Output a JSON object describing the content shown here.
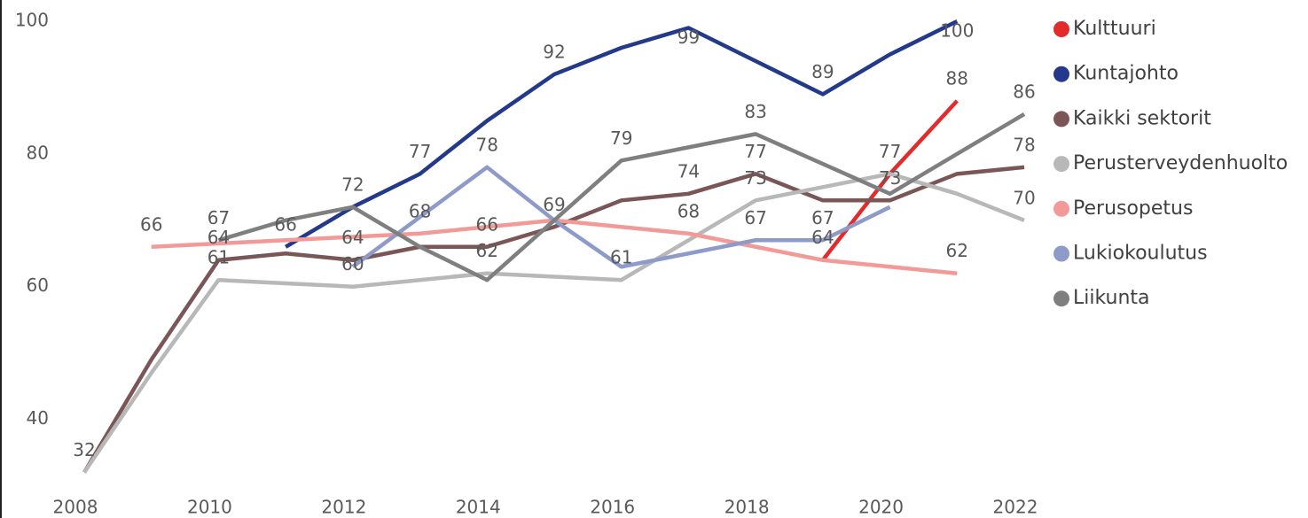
{
  "chart_data": {
    "type": "line",
    "x": [
      2008,
      2009,
      2010,
      2011,
      2012,
      2013,
      2014,
      2015,
      2016,
      2017,
      2018,
      2019,
      2020,
      2021,
      2022
    ],
    "xlim": [
      2008,
      2022
    ],
    "xticks": [
      2008,
      2010,
      2012,
      2014,
      2016,
      2018,
      2020,
      2022
    ],
    "ylim": [
      31,
      100
    ],
    "yticks": [
      40,
      60,
      80,
      100
    ],
    "legend": "right",
    "series": [
      {
        "name": "Kulttuuri",
        "color": "#e32b2b",
        "values": [
          null,
          null,
          null,
          null,
          null,
          null,
          null,
          null,
          null,
          null,
          null,
          64,
          77,
          88,
          null
        ],
        "value_labels": [
          null,
          null,
          null,
          null,
          null,
          null,
          null,
          null,
          null,
          null,
          null,
          "64",
          "77",
          "88",
          null
        ]
      },
      {
        "name": "Kuntajohto",
        "color": "#233a8a",
        "values": [
          null,
          null,
          null,
          66,
          72,
          77,
          85,
          92,
          96,
          99,
          94,
          89,
          95,
          100,
          null
        ],
        "value_labels": [
          null,
          null,
          null,
          "66",
          null,
          "77",
          null,
          "92",
          null,
          "99",
          null,
          "89",
          null,
          "100",
          null
        ]
      },
      {
        "name": "Kaikki sektorit",
        "color": "#7a5656",
        "values": [
          32,
          49,
          64,
          65,
          64,
          66,
          66,
          69,
          73,
          74,
          77,
          73,
          73,
          77,
          78
        ],
        "value_labels": [
          "32",
          null,
          "64",
          null,
          "64",
          null,
          "66",
          "69",
          null,
          "74",
          "77",
          null,
          "73",
          null,
          "78"
        ]
      },
      {
        "name": "Perusterveydenhuolto",
        "color": "#b8b8b8",
        "values": [
          32,
          47,
          61,
          60.5,
          60,
          61,
          62,
          61.5,
          61,
          67,
          73,
          75,
          77,
          74,
          70
        ],
        "value_labels": [
          null,
          null,
          "61",
          null,
          "60",
          null,
          "62",
          null,
          "61",
          null,
          "73",
          null,
          null,
          null,
          "70"
        ]
      },
      {
        "name": "Perusopetus",
        "color": "#f29a98",
        "values": [
          null,
          66,
          66.5,
          67,
          67.5,
          68,
          69,
          70,
          69,
          68,
          66,
          64,
          63,
          62,
          null
        ],
        "value_labels": [
          null,
          "66",
          null,
          null,
          null,
          "68",
          null,
          null,
          null,
          "68",
          null,
          null,
          null,
          "62",
          null
        ]
      },
      {
        "name": "Lukiokoulutus",
        "color": "#8e9bc9",
        "values": [
          null,
          null,
          null,
          null,
          63,
          70.5,
          78,
          70,
          63,
          65,
          67,
          67,
          72,
          null,
          null
        ],
        "value_labels": [
          null,
          null,
          null,
          null,
          null,
          null,
          "78",
          null,
          null,
          null,
          "67",
          "67",
          null,
          null,
          null
        ]
      },
      {
        "name": "Liikunta",
        "color": "#7f7f7f",
        "values": [
          null,
          null,
          67,
          70,
          72,
          66,
          61,
          70,
          79,
          81,
          83,
          78.5,
          74,
          80,
          86
        ],
        "value_labels": [
          null,
          null,
          "67",
          null,
          "72",
          null,
          null,
          null,
          "79",
          null,
          "83",
          null,
          null,
          null,
          "86"
        ]
      }
    ]
  }
}
